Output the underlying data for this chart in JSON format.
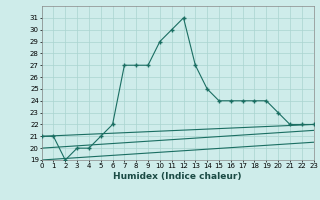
{
  "xlabel": "Humidex (Indice chaleur)",
  "ylabel": "",
  "background_color": "#ceecea",
  "grid_color": "#aad4d0",
  "line_color": "#1a6e62",
  "main_x": [
    0,
    1,
    2,
    3,
    4,
    5,
    6,
    7,
    8,
    9,
    10,
    11,
    12,
    13,
    14,
    15,
    16,
    17,
    18,
    19,
    20,
    21,
    22,
    23
  ],
  "main_y": [
    21,
    21,
    19,
    20,
    20,
    21,
    22,
    27,
    27,
    27,
    29,
    30,
    31,
    27,
    25,
    24,
    24,
    24,
    24,
    24,
    23,
    22,
    22,
    22
  ],
  "line1_x": [
    0,
    23
  ],
  "line1_y": [
    21,
    22
  ],
  "line2_x": [
    0,
    23
  ],
  "line2_y": [
    20,
    21.5
  ],
  "line3_x": [
    0,
    23
  ],
  "line3_y": [
    19,
    20.5
  ],
  "ylim": [
    19,
    32
  ],
  "xlim": [
    0,
    23
  ],
  "yticks": [
    19,
    20,
    21,
    22,
    23,
    24,
    25,
    26,
    27,
    28,
    29,
    30,
    31
  ],
  "xticks": [
    0,
    1,
    2,
    3,
    4,
    5,
    6,
    7,
    8,
    9,
    10,
    11,
    12,
    13,
    14,
    15,
    16,
    17,
    18,
    19,
    20,
    21,
    22,
    23
  ],
  "xtick_labels": [
    "0",
    "1",
    "2",
    "3",
    "4",
    "5",
    "6",
    "7",
    "8",
    "9",
    "10",
    "11",
    "12",
    "13",
    "14",
    "15",
    "16",
    "17",
    "18",
    "19",
    "20",
    "21",
    "22",
    "23"
  ],
  "tick_fontsize": 5,
  "xlabel_fontsize": 6.5
}
